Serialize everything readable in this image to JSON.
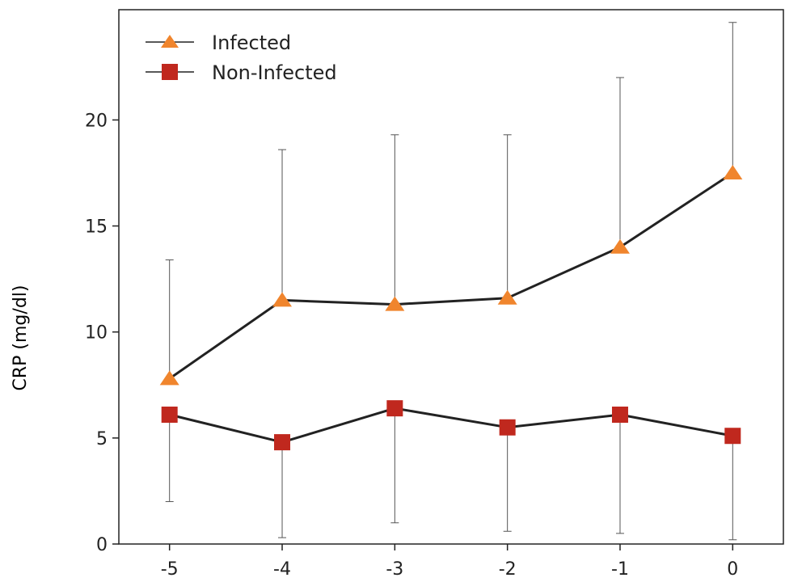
{
  "chart_data": {
    "type": "line",
    "title": "",
    "xlabel": "",
    "ylabel": "CRP (mg/dl)",
    "x": [
      -5,
      -4,
      -3,
      -2,
      -1,
      0
    ],
    "x_tick_labels": [
      "-5",
      "-4",
      "-3",
      "-2",
      "-1",
      "0"
    ],
    "y_ticks": [
      0,
      5,
      10,
      15,
      20
    ],
    "y_tick_labels": [
      "0",
      "5",
      "10",
      "15",
      "20"
    ],
    "xlim": [
      -5.45,
      0.45
    ],
    "ylim": [
      0,
      25.2
    ],
    "grid": false,
    "legend_position": "top-left",
    "series": [
      {
        "name": "Infected",
        "marker": "triangle",
        "color": "#F0852D",
        "values": [
          7.8,
          11.5,
          11.3,
          11.6,
          14.0,
          17.5
        ],
        "error_upper": [
          13.4,
          18.6,
          19.3,
          19.3,
          22.0,
          24.6
        ]
      },
      {
        "name": "Non-Infected",
        "marker": "square",
        "color": "#C0281E",
        "values": [
          6.1,
          4.8,
          6.4,
          5.5,
          6.1,
          5.1
        ],
        "error_lower": [
          2.0,
          0.3,
          1.0,
          0.6,
          0.5,
          0.2
        ]
      }
    ]
  }
}
